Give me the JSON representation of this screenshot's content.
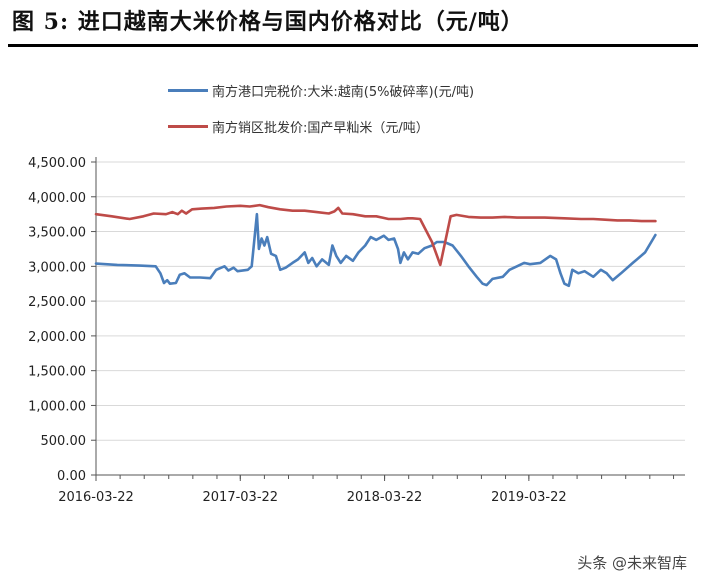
{
  "figure_title": "图  5: 进口越南大米价格与国内价格对比（元/吨）",
  "watermark": "头条 @未来智库",
  "chart_data": {
    "type": "line",
    "title": "",
    "xlabel": "",
    "ylabel": "",
    "ylim": [
      0,
      4500
    ],
    "yticks": [
      "4,500.00",
      "4,000.00",
      "3,500.00",
      "3,000.00",
      "2,500.00",
      "2,000.00",
      "1,500.00",
      "1,000.00",
      "500.00",
      "0.00"
    ],
    "ytick_values": [
      4500,
      4000,
      3500,
      3000,
      2500,
      2000,
      1500,
      1000,
      500,
      0
    ],
    "xlim": [
      "2016-03-22",
      "2020-04-20"
    ],
    "xticks": [
      "2016-03-22",
      "2017-03-22",
      "2018-03-22",
      "2019-03-22"
    ],
    "grid": true,
    "legend_position": "top",
    "series": [
      {
        "name": "南方港口完税价:大米:越南(5%破碎率)(元/吨)",
        "color": "#4a7ebb",
        "points": [
          [
            "2016-03-22",
            3040
          ],
          [
            "2016-05-15",
            3020
          ],
          [
            "2016-07-10",
            3010
          ],
          [
            "2016-08-20",
            3000
          ],
          [
            "2016-09-01",
            2900
          ],
          [
            "2016-09-10",
            2760
          ],
          [
            "2016-09-18",
            2800
          ],
          [
            "2016-09-25",
            2750
          ],
          [
            "2016-10-10",
            2760
          ],
          [
            "2016-10-20",
            2880
          ],
          [
            "2016-11-01",
            2900
          ],
          [
            "2016-11-15",
            2840
          ],
          [
            "2016-12-10",
            2840
          ],
          [
            "2017-01-05",
            2830
          ],
          [
            "2017-01-20",
            2950
          ],
          [
            "2017-02-10",
            3000
          ],
          [
            "2017-02-20",
            2940
          ],
          [
            "2017-03-05",
            2980
          ],
          [
            "2017-03-15",
            2930
          ],
          [
            "2017-04-10",
            2950
          ],
          [
            "2017-04-20",
            3000
          ],
          [
            "2017-05-03",
            3750
          ],
          [
            "2017-05-08",
            3250
          ],
          [
            "2017-05-15",
            3400
          ],
          [
            "2017-05-22",
            3300
          ],
          [
            "2017-05-29",
            3420
          ],
          [
            "2017-06-08",
            3180
          ],
          [
            "2017-06-20",
            3150
          ],
          [
            "2017-07-01",
            2950
          ],
          [
            "2017-07-15",
            2980
          ],
          [
            "2017-08-01",
            3050
          ],
          [
            "2017-08-15",
            3100
          ],
          [
            "2017-09-01",
            3200
          ],
          [
            "2017-09-10",
            3050
          ],
          [
            "2017-09-20",
            3120
          ],
          [
            "2017-10-01",
            3000
          ],
          [
            "2017-10-15",
            3100
          ],
          [
            "2017-11-01",
            3020
          ],
          [
            "2017-11-10",
            3300
          ],
          [
            "2017-11-20",
            3150
          ],
          [
            "2017-12-01",
            3050
          ],
          [
            "2017-12-15",
            3150
          ],
          [
            "2018-01-01",
            3080
          ],
          [
            "2018-01-15",
            3200
          ],
          [
            "2018-02-01",
            3300
          ],
          [
            "2018-02-15",
            3420
          ],
          [
            "2018-03-01",
            3380
          ],
          [
            "2018-03-20",
            3440
          ],
          [
            "2018-04-01",
            3380
          ],
          [
            "2018-04-15",
            3400
          ],
          [
            "2018-04-25",
            3250
          ],
          [
            "2018-05-01",
            3050
          ],
          [
            "2018-05-10",
            3200
          ],
          [
            "2018-05-20",
            3100
          ],
          [
            "2018-06-01",
            3200
          ],
          [
            "2018-06-15",
            3180
          ],
          [
            "2018-07-01",
            3260
          ],
          [
            "2018-07-20",
            3300
          ],
          [
            "2018-08-01",
            3350
          ],
          [
            "2018-08-20",
            3350
          ],
          [
            "2018-09-10",
            3300
          ],
          [
            "2018-10-01",
            3150
          ],
          [
            "2018-10-20",
            3000
          ],
          [
            "2018-11-10",
            2850
          ],
          [
            "2018-11-25",
            2750
          ],
          [
            "2018-12-05",
            2730
          ],
          [
            "2018-12-20",
            2820
          ],
          [
            "2019-01-15",
            2850
          ],
          [
            "2019-02-01",
            2950
          ],
          [
            "2019-02-20",
            3000
          ],
          [
            "2019-03-10",
            3050
          ],
          [
            "2019-03-25",
            3030
          ],
          [
            "2019-04-20",
            3050
          ],
          [
            "2019-05-15",
            3150
          ],
          [
            "2019-05-30",
            3100
          ],
          [
            "2019-06-10",
            2900
          ],
          [
            "2019-06-20",
            2750
          ],
          [
            "2019-07-01",
            2720
          ],
          [
            "2019-07-10",
            2950
          ],
          [
            "2019-07-25",
            2900
          ],
          [
            "2019-08-10",
            2930
          ],
          [
            "2019-09-01",
            2850
          ],
          [
            "2019-09-20",
            2950
          ],
          [
            "2019-10-05",
            2900
          ],
          [
            "2019-10-20",
            2800
          ],
          [
            "2019-11-10",
            2900
          ],
          [
            "2019-12-10",
            3050
          ],
          [
            "2020-01-10",
            3200
          ],
          [
            "2020-02-05",
            3450
          ]
        ]
      },
      {
        "name": "南方销区批发价:国产早籼米（元/吨）",
        "color": "#be4b48",
        "points": [
          [
            "2016-03-22",
            3750
          ],
          [
            "2016-05-01",
            3720
          ],
          [
            "2016-06-15",
            3680
          ],
          [
            "2016-07-20",
            3720
          ],
          [
            "2016-08-15",
            3760
          ],
          [
            "2016-09-15",
            3750
          ],
          [
            "2016-10-01",
            3780
          ],
          [
            "2016-10-15",
            3750
          ],
          [
            "2016-10-25",
            3800
          ],
          [
            "2016-11-05",
            3760
          ],
          [
            "2016-11-20",
            3820
          ],
          [
            "2016-12-15",
            3830
          ],
          [
            "2017-01-15",
            3840
          ],
          [
            "2017-02-15",
            3860
          ],
          [
            "2017-03-22",
            3870
          ],
          [
            "2017-04-15",
            3860
          ],
          [
            "2017-05-10",
            3880
          ],
          [
            "2017-06-01",
            3850
          ],
          [
            "2017-07-01",
            3820
          ],
          [
            "2017-08-01",
            3800
          ],
          [
            "2017-09-01",
            3800
          ],
          [
            "2017-10-01",
            3780
          ],
          [
            "2017-11-01",
            3760
          ],
          [
            "2017-11-15",
            3790
          ],
          [
            "2017-11-25",
            3840
          ],
          [
            "2017-12-05",
            3760
          ],
          [
            "2018-01-01",
            3750
          ],
          [
            "2018-02-01",
            3720
          ],
          [
            "2018-03-01",
            3720
          ],
          [
            "2018-04-01",
            3680
          ],
          [
            "2018-05-01",
            3680
          ],
          [
            "2018-05-20",
            3690
          ],
          [
            "2018-06-01",
            3690
          ],
          [
            "2018-06-20",
            3680
          ],
          [
            "2018-07-20",
            3350
          ],
          [
            "2018-08-10",
            3020
          ],
          [
            "2018-09-05",
            3720
          ],
          [
            "2018-09-20",
            3740
          ],
          [
            "2018-10-20",
            3710
          ],
          [
            "2018-11-20",
            3700
          ],
          [
            "2018-12-20",
            3700
          ],
          [
            "2019-01-20",
            3710
          ],
          [
            "2019-02-20",
            3700
          ],
          [
            "2019-03-22",
            3700
          ],
          [
            "2019-05-01",
            3700
          ],
          [
            "2019-06-20",
            3690
          ],
          [
            "2019-08-01",
            3680
          ],
          [
            "2019-09-01",
            3680
          ],
          [
            "2019-10-01",
            3670
          ],
          [
            "2019-11-01",
            3660
          ],
          [
            "2019-12-01",
            3660
          ],
          [
            "2020-01-01",
            3650
          ],
          [
            "2020-02-05",
            3650
          ]
        ]
      }
    ]
  }
}
